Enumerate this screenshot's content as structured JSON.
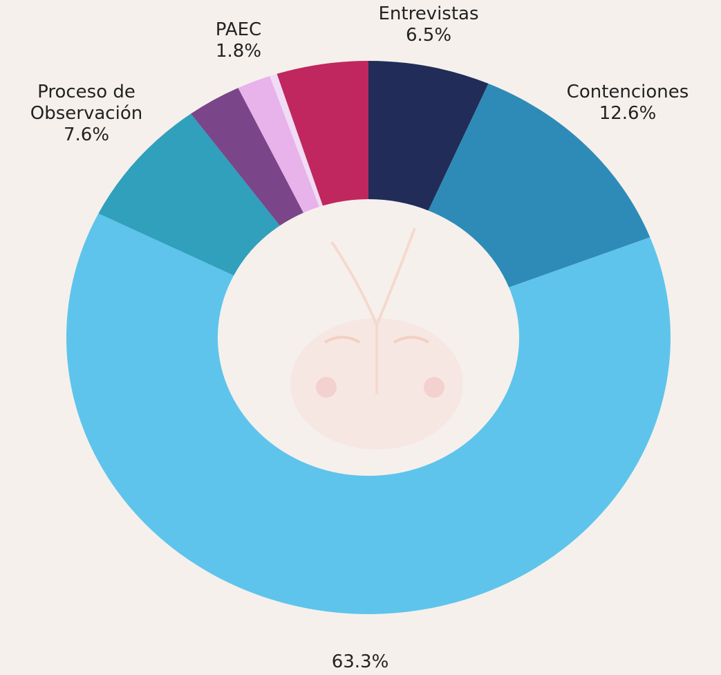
{
  "chart_data": {
    "type": "donut",
    "categories": [
      "Entrevistas",
      "Contenciones",
      null,
      "Proceso de Observación",
      null,
      "PAEC",
      null,
      null
    ],
    "values": [
      6.5,
      12.6,
      63.3,
      7.6,
      2.9,
      1.8,
      0.4,
      4.9
    ],
    "value_labels": [
      "6.5%",
      "12.6%",
      "63.3%",
      "7.6%",
      null,
      "1.8%",
      null,
      null
    ],
    "colors": [
      "#212d58",
      "#2e8bb8",
      "#5ec4ec",
      "#30a0bc",
      "#7a4589",
      "#e8b2ea",
      "#f0dcf5",
      "#c0275e"
    ]
  }
}
